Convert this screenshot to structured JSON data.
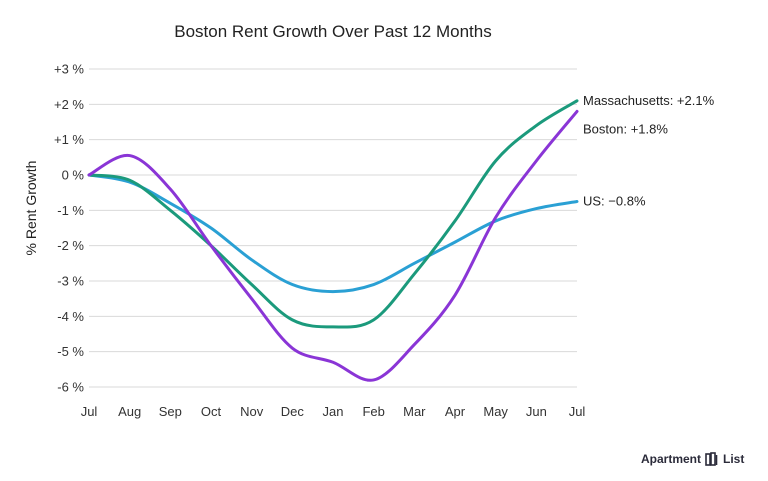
{
  "chart_data": {
    "type": "line",
    "title": "Boston Rent Growth Over Past 12 Months",
    "xlabel": "",
    "ylabel": "% Rent Growth",
    "categories": [
      "Jul",
      "Aug",
      "Sep",
      "Oct",
      "Nov",
      "Dec",
      "Jan",
      "Feb",
      "Mar",
      "Apr",
      "May",
      "Jun",
      "Jul"
    ],
    "y_ticks": [
      {
        "value": 3,
        "label": "+3 %"
      },
      {
        "value": 2,
        "label": "+2 %"
      },
      {
        "value": 1,
        "label": "+1 %"
      },
      {
        "value": 0,
        "label": "0 %"
      },
      {
        "value": -1,
        "label": "-1 %"
      },
      {
        "value": -2,
        "label": "-2 %"
      },
      {
        "value": -3,
        "label": "-3 %"
      },
      {
        "value": -4,
        "label": "-4 %"
      },
      {
        "value": -5,
        "label": "-5 %"
      },
      {
        "value": -6,
        "label": "-6 %"
      }
    ],
    "ylim": [
      -6,
      3
    ],
    "grid": true,
    "series": [
      {
        "key": "us",
        "label": "US: −0.8%",
        "color": "#2aa0d4",
        "values": [
          0.0,
          -0.2,
          -0.8,
          -1.5,
          -2.4,
          -3.1,
          -3.3,
          -3.1,
          -2.5,
          -1.9,
          -1.3,
          -0.95,
          -0.75
        ]
      },
      {
        "key": "massachusetts",
        "label": "Massachusetts: +2.1%",
        "color": "#1b9a7c",
        "values": [
          0.0,
          -0.15,
          -1.0,
          -2.0,
          -3.1,
          -4.1,
          -4.3,
          -4.1,
          -2.8,
          -1.3,
          0.4,
          1.4,
          2.1
        ]
      },
      {
        "key": "boston",
        "label": "Boston: +1.8%",
        "color": "#8a35d6",
        "values": [
          0.0,
          0.55,
          -0.4,
          -2.0,
          -3.5,
          -4.9,
          -5.3,
          -5.8,
          -4.8,
          -3.4,
          -1.2,
          0.4,
          1.8
        ]
      }
    ]
  },
  "brand": {
    "text_left": "Apartment",
    "text_right": "List"
  }
}
